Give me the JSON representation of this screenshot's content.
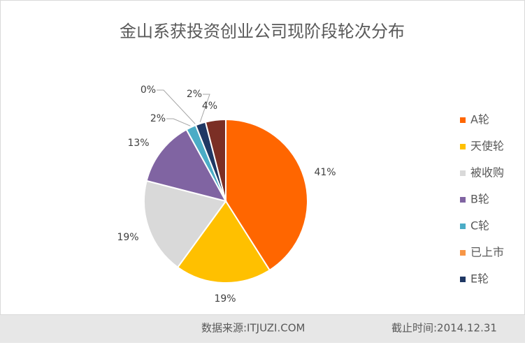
{
  "chart_data": {
    "type": "pie",
    "title": "金山系获投资创业公司现阶段轮次分布",
    "categories": [
      "A轮",
      "天使轮",
      "被收购",
      "B轮",
      "C轮",
      "已上市",
      "E轮",
      null
    ],
    "values": [
      41,
      19,
      19,
      13,
      2,
      0,
      2,
      4
    ],
    "value_labels": [
      "41%",
      "19%",
      "19%",
      "13%",
      "2%",
      "0%",
      "2%",
      "4%"
    ],
    "colors": [
      "#ff6600",
      "#ffc000",
      "#d9d9d9",
      "#8064a2",
      "#4bacc6",
      "#f79646",
      "#1f3864",
      "#7b2f25"
    ],
    "legend": "right"
  },
  "footer": {
    "source": "数据来源:ITJUZI.COM",
    "date": "截止时间:2014.12.31"
  }
}
